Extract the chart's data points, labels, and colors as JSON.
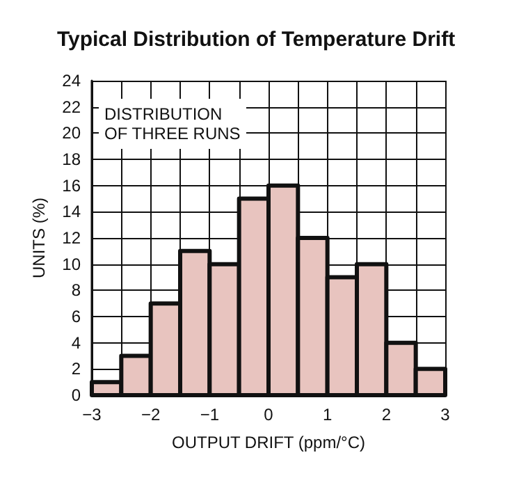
{
  "chart_data": {
    "type": "histogram",
    "title": "Typical Distribution of Temperature Drift",
    "xlabel": "OUTPUT DRIFT (ppm/°C)",
    "ylabel": "UNITS (%)",
    "annotations": [
      "DISTRIBUTION\nOF THREE RUNS"
    ],
    "bins": [
      -3,
      -2.5,
      -2,
      -1.5,
      -1,
      -0.5,
      0,
      0.5,
      1,
      1.5,
      2,
      2.5,
      3
    ],
    "values": [
      1,
      3,
      7,
      11,
      10,
      15,
      16,
      12,
      9,
      10,
      4,
      2
    ],
    "color": "#e8c4bf",
    "xlim": [
      -3,
      3
    ],
    "xticks": [
      -3,
      {
        "value": -2.5,
        "label": null
      },
      -2,
      {
        "value": -1.5,
        "label": null
      },
      -1,
      {
        "value": -0.5,
        "label": null
      },
      0,
      {
        "value": 0.5,
        "label": null
      },
      1,
      {
        "value": 1.5,
        "label": null
      },
      2,
      {
        "value": 2.5,
        "label": null
      },
      3
    ],
    "ylim": [
      0,
      24
    ],
    "yticks": [
      0,
      2,
      4,
      6,
      8,
      10,
      12,
      14,
      16,
      18,
      20,
      22,
      24
    ],
    "grid": true
  }
}
